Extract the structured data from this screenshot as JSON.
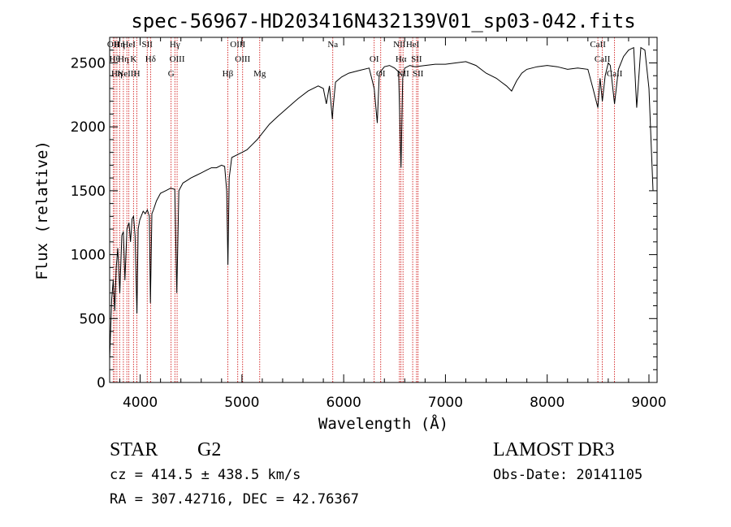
{
  "chart_data": {
    "type": "line",
    "title": "spec-56967-HD203416N432139V01_sp03-042.fits",
    "xlabel": "Wavelength (Å)",
    "ylabel": "Flux (relative)",
    "xlim": [
      3700,
      9080
    ],
    "ylim": [
      0,
      2700
    ],
    "xticks": [
      4000,
      5000,
      6000,
      7000,
      8000,
      9000
    ],
    "yticks": [
      0,
      500,
      1000,
      1500,
      2000,
      2500
    ],
    "series": [
      {
        "x": [
          3700,
          3720,
          3735,
          3750,
          3765,
          3780,
          3800,
          3820,
          3835,
          3850,
          3870,
          3890,
          3905,
          3920,
          3935,
          3950,
          3968,
          3980,
          3995,
          4010,
          4030,
          4050,
          4070,
          4090,
          4101,
          4115,
          4130,
          4160,
          4200,
          4250,
          4300,
          4340,
          4360,
          4380,
          4420,
          4460,
          4500,
          4550,
          4600,
          4650,
          4700,
          4750,
          4800,
          4830,
          4850,
          4862,
          4875,
          4900,
          4950,
          5000,
          5050,
          5100,
          5150,
          5200,
          5270,
          5350,
          5450,
          5550,
          5650,
          5750,
          5800,
          5830,
          5860,
          5889,
          5896,
          5920,
          5980,
          6050,
          6150,
          6250,
          6300,
          6330,
          6350,
          6400,
          6450,
          6500,
          6540,
          6563,
          6580,
          6600,
          6650,
          6700,
          6800,
          6900,
          7000,
          7100,
          7200,
          7300,
          7400,
          7500,
          7550,
          7600,
          7650,
          7700,
          7750,
          7800,
          7900,
          8000,
          8100,
          8200,
          8300,
          8400,
          8450,
          8498,
          8520,
          8542,
          8570,
          8600,
          8620,
          8662,
          8700,
          8750,
          8800,
          8850,
          8880,
          8920,
          8960,
          9000,
          9040
        ],
        "y": [
          180,
          650,
          800,
          560,
          900,
          1050,
          700,
          1150,
          1180,
          800,
          1200,
          1250,
          1100,
          1280,
          1300,
          1150,
          540,
          1200,
          1270,
          1300,
          1340,
          1320,
          1350,
          1300,
          620,
          1320,
          1350,
          1420,
          1480,
          1500,
          1520,
          1510,
          700,
          1500,
          1560,
          1580,
          1600,
          1620,
          1640,
          1660,
          1680,
          1680,
          1700,
          1690,
          1500,
          920,
          1600,
          1760,
          1780,
          1800,
          1820,
          1860,
          1900,
          1950,
          2020,
          2080,
          2150,
          2220,
          2280,
          2320,
          2300,
          2180,
          2320,
          2060,
          2150,
          2350,
          2390,
          2420,
          2440,
          2460,
          2300,
          2030,
          2420,
          2470,
          2480,
          2460,
          2430,
          1680,
          2380,
          2460,
          2480,
          2470,
          2480,
          2490,
          2490,
          2500,
          2510,
          2480,
          2420,
          2380,
          2350,
          2320,
          2280,
          2360,
          2420,
          2450,
          2470,
          2480,
          2470,
          2450,
          2460,
          2450,
          2300,
          2150,
          2380,
          2200,
          2400,
          2500,
          2480,
          2180,
          2450,
          2550,
          2600,
          2620,
          2150,
          2620,
          2600,
          2300,
          1500
        ]
      }
    ],
    "lines": [
      {
        "x": 3736,
        "labels": [
          "OII"
        ]
      },
      {
        "x": 3750,
        "labels": [
          "Hθ"
        ]
      },
      {
        "x": 3771,
        "labels": [
          "Hη"
        ]
      },
      {
        "x": 3798,
        "labels": [
          "Hη"
        ]
      },
      {
        "x": 3835,
        "labels": [
          "Hη"
        ]
      },
      {
        "x": 3869,
        "labels": [
          "NeIII"
        ]
      },
      {
        "x": 3889,
        "labels": [
          "HeI"
        ]
      },
      {
        "x": 3934,
        "labels": [
          "K"
        ]
      },
      {
        "x": 3968,
        "labels": [
          "H"
        ]
      },
      {
        "x": 4069,
        "labels": [
          "SII"
        ]
      },
      {
        "x": 4102,
        "labels": [
          "Hδ"
        ]
      },
      {
        "x": 4304,
        "labels": [
          "G"
        ]
      },
      {
        "x": 4341,
        "labels": [
          "Hγ"
        ]
      },
      {
        "x": 4363,
        "labels": [
          "OIII"
        ]
      },
      {
        "x": 4861,
        "labels": [
          "Hβ"
        ]
      },
      {
        "x": 4959,
        "labels": [
          "OIII"
        ]
      },
      {
        "x": 5007,
        "labels": [
          "OIII"
        ]
      },
      {
        "x": 5175,
        "labels": [
          "Mg"
        ]
      },
      {
        "x": 5893,
        "labels": [
          "Na"
        ]
      },
      {
        "x": 6300,
        "labels": [
          "OI"
        ]
      },
      {
        "x": 6364,
        "labels": [
          "OI"
        ]
      },
      {
        "x": 6548,
        "labels": [
          "NII"
        ]
      },
      {
        "x": 6563,
        "labels": [
          "Hα"
        ]
      },
      {
        "x": 6583,
        "labels": [
          "NII"
        ]
      },
      {
        "x": 6678,
        "labels": [
          "HeI"
        ]
      },
      {
        "x": 6716,
        "labels": [
          "SII"
        ]
      },
      {
        "x": 6731,
        "labels": [
          "SII"
        ]
      },
      {
        "x": 8498,
        "labels": [
          "CaII"
        ]
      },
      {
        "x": 8542,
        "labels": [
          "CaII"
        ]
      },
      {
        "x": 8662,
        "labels": [
          "CaII"
        ]
      }
    ]
  },
  "info": {
    "class_label": "STAR",
    "subclass": "G2",
    "cz": "cz = 414.5 ± 438.5 km/s",
    "radec": "RA = 307.42716, DEC =  42.76367",
    "survey": "LAMOST DR3",
    "obs_date": "Obs-Date: 20141105"
  },
  "colors": {
    "spectrum": "#000000",
    "line_marker": "#cc0000"
  }
}
